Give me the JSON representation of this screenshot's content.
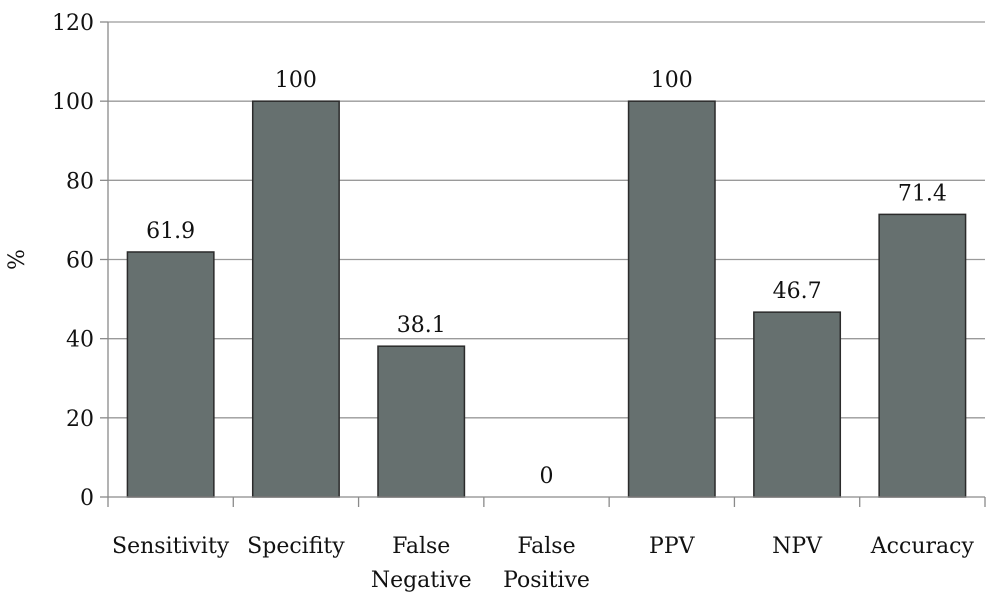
{
  "chart_data": {
    "type": "bar",
    "categories": [
      [
        "Sensitivity"
      ],
      [
        "Specifity"
      ],
      [
        "False",
        "Negative"
      ],
      [
        "False",
        "Positive"
      ],
      [
        "PPV"
      ],
      [
        "NPV"
      ],
      [
        "Accuracy"
      ]
    ],
    "values": [
      61.9,
      100,
      38.1,
      0,
      100,
      46.7,
      71.4
    ],
    "data_labels": [
      "61.9",
      "100",
      "38.1",
      "0",
      "100",
      "46.7",
      "71.4"
    ],
    "ylabel": "%",
    "ylim": [
      0,
      120
    ],
    "yticks": [
      "0",
      "20",
      "40",
      "60",
      "80",
      "100",
      "120"
    ],
    "grid": true,
    "colors": {
      "bar_fill": "#66706f",
      "bar_stroke": "#2b2b2b",
      "grid": "#9a9a9a",
      "axis": "#8a8a8a"
    }
  }
}
